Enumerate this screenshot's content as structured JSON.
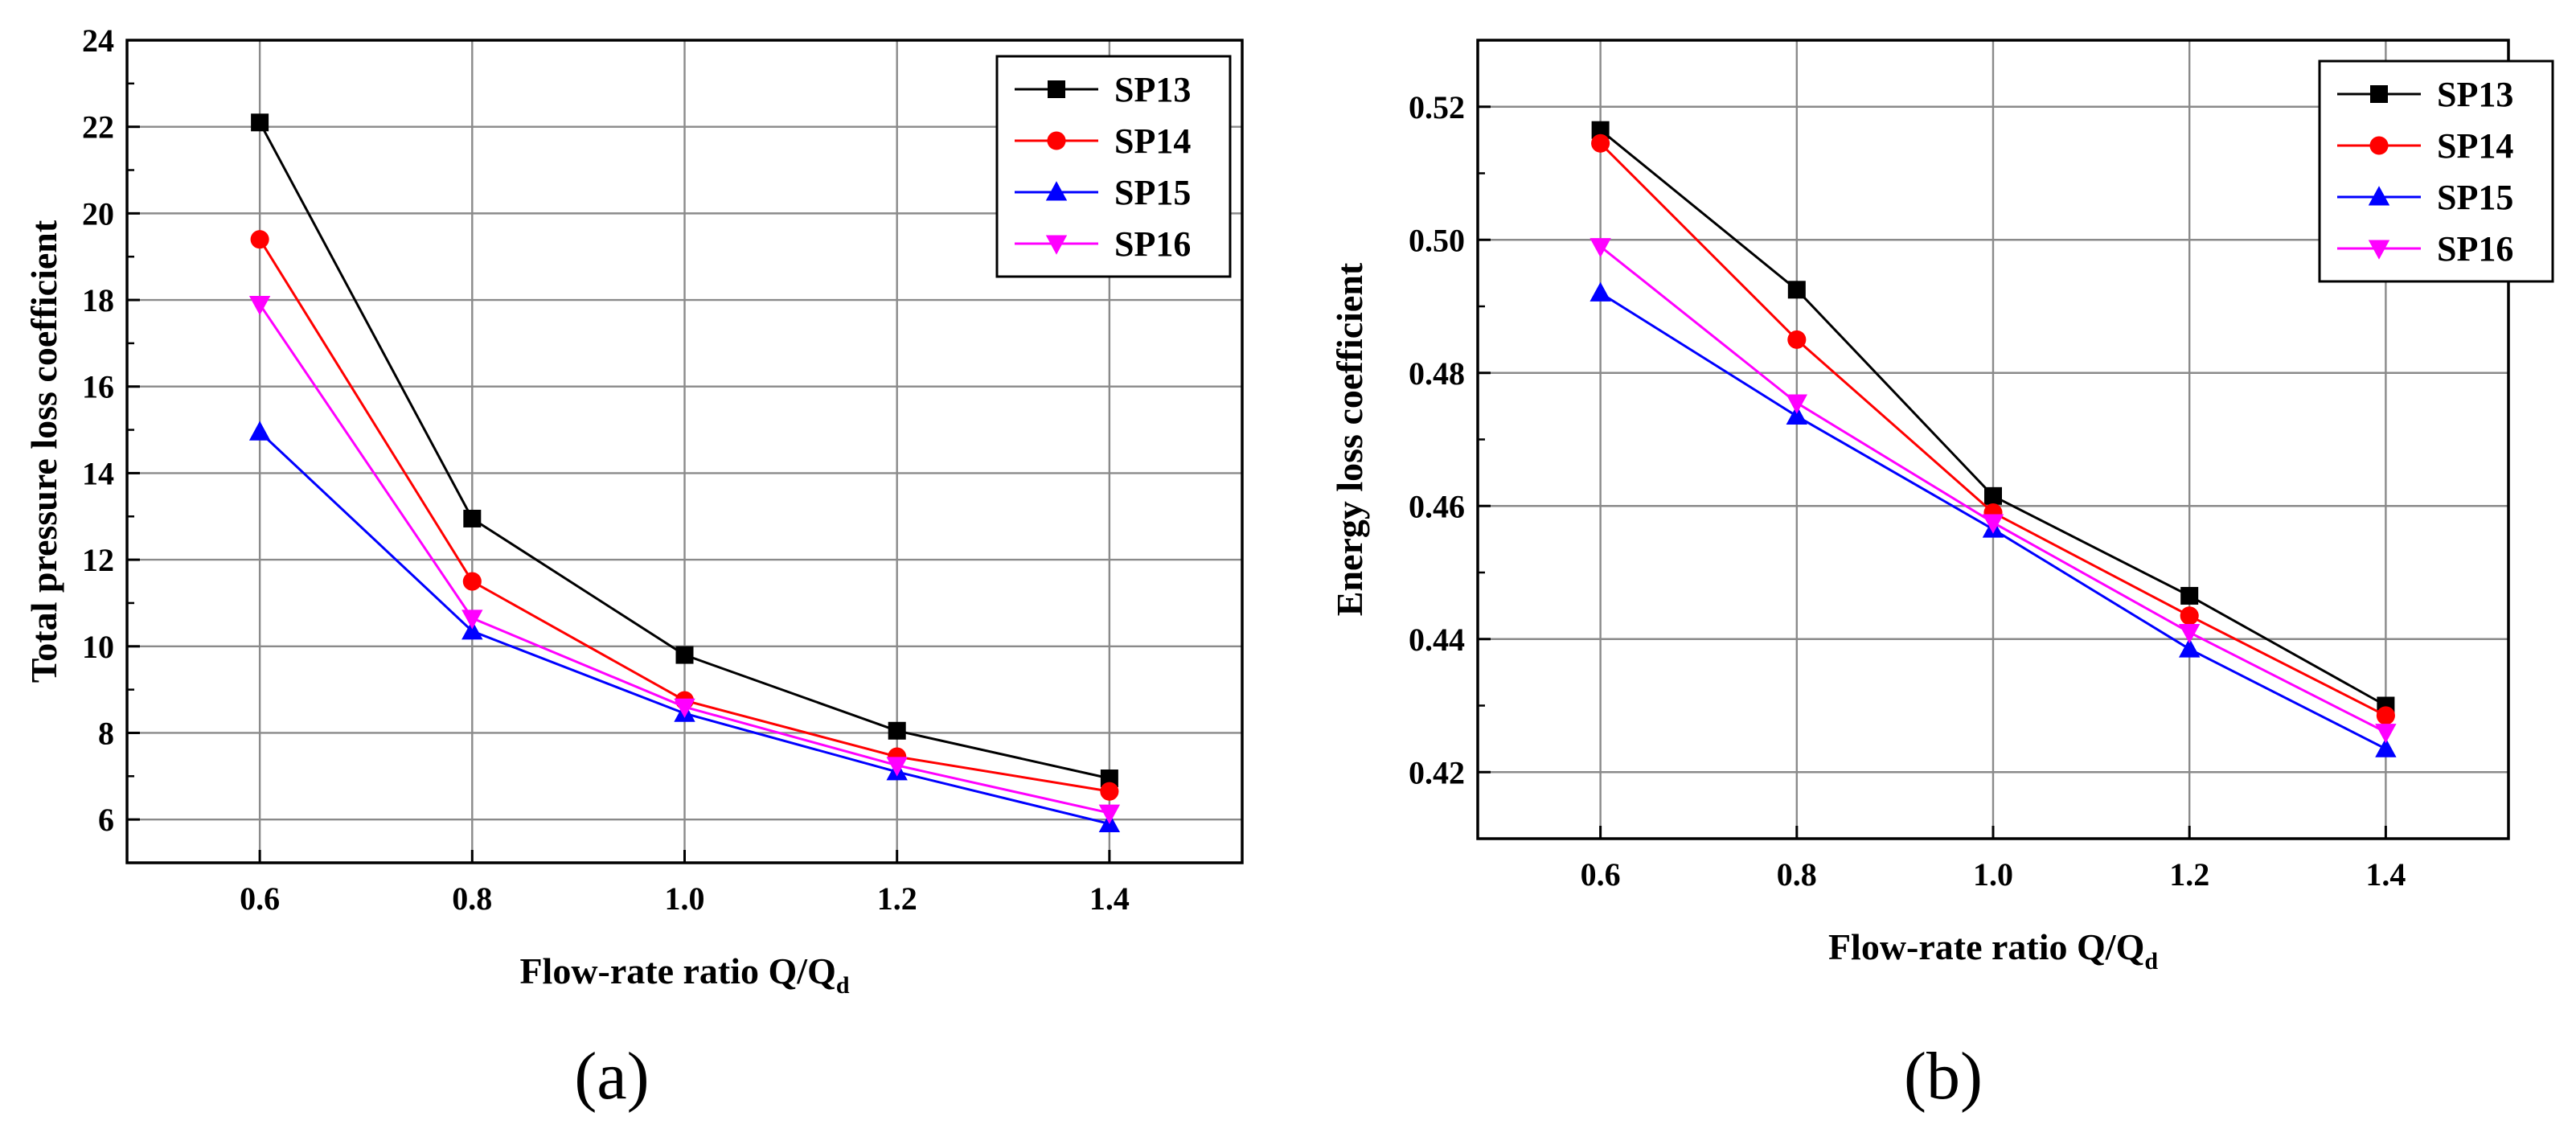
{
  "chart_data": [
    {
      "type": "line",
      "panel_label": "(a)",
      "title": "",
      "xlabel_main": "Flow-rate ratio Q/Q",
      "xlabel_sub": "d",
      "ylabel": "Total pressure loss coefficient",
      "x": [
        0.6,
        0.8,
        1.0,
        1.2,
        1.4
      ],
      "xtick_labels": [
        "0.6",
        "0.8",
        "1.0",
        "1.2",
        "1.4"
      ],
      "xlim": [
        0.475,
        1.525
      ],
      "ylim": [
        5,
        24
      ],
      "yticks": [
        6,
        8,
        10,
        12,
        14,
        16,
        18,
        20,
        22,
        24
      ],
      "ytick_labels": [
        "6",
        "8",
        "10",
        "12",
        "14",
        "16",
        "18",
        "20",
        "22",
        "24"
      ],
      "grid": true,
      "legend_position": "top-right",
      "series": [
        {
          "name": "SP13",
          "color": "#000000",
          "marker": "square",
          "values": [
            22.1,
            12.95,
            9.8,
            8.05,
            6.95
          ]
        },
        {
          "name": "SP14",
          "color": "#ff0000",
          "marker": "circle",
          "values": [
            19.4,
            11.5,
            8.75,
            7.45,
            6.65
          ]
        },
        {
          "name": "SP15",
          "color": "#0000ff",
          "marker": "triangle-up",
          "values": [
            14.95,
            10.35,
            8.45,
            7.1,
            5.9
          ]
        },
        {
          "name": "SP16",
          "color": "#ff00ff",
          "marker": "triangle-down",
          "values": [
            17.9,
            10.65,
            8.6,
            7.25,
            6.15
          ]
        }
      ]
    },
    {
      "type": "line",
      "panel_label": "(b)",
      "title": "",
      "xlabel_main": "Flow-rate ratio Q/Q",
      "xlabel_sub": "d",
      "ylabel": "Energy loss coefficient",
      "x": [
        0.6,
        0.8,
        1.0,
        1.2,
        1.4
      ],
      "xtick_labels": [
        "0.6",
        "0.8",
        "1.0",
        "1.2",
        "1.4"
      ],
      "xlim": [
        0.475,
        1.525
      ],
      "ylim": [
        0.41,
        0.53
      ],
      "yticks": [
        0.42,
        0.44,
        0.46,
        0.48,
        0.5,
        0.52
      ],
      "ytick_labels": [
        "0.42",
        "0.44",
        "0.46",
        "0.48",
        "0.50",
        "0.52"
      ],
      "grid": true,
      "legend_position": "top-right",
      "series": [
        {
          "name": "SP13",
          "color": "#000000",
          "marker": "square",
          "values": [
            0.5165,
            0.4925,
            0.4615,
            0.4465,
            0.43
          ]
        },
        {
          "name": "SP14",
          "color": "#ff0000",
          "marker": "circle",
          "values": [
            0.5145,
            0.485,
            0.459,
            0.4435,
            0.4285
          ]
        },
        {
          "name": "SP15",
          "color": "#0000ff",
          "marker": "triangle-up",
          "values": [
            0.492,
            0.4735,
            0.4565,
            0.4385,
            0.4235
          ]
        },
        {
          "name": "SP16",
          "color": "#ff00ff",
          "marker": "triangle-down",
          "values": [
            0.499,
            0.4755,
            0.4575,
            0.441,
            0.426
          ]
        }
      ]
    }
  ]
}
